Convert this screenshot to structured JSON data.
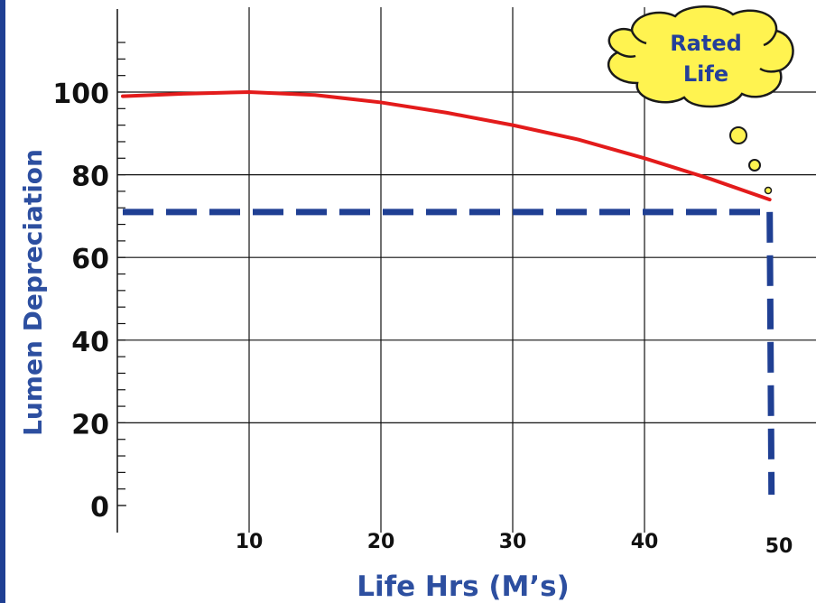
{
  "chart_data": {
    "type": "line",
    "title": "",
    "xlabel": "Life Hrs (M’s)",
    "ylabel": "Lumen Depreciation",
    "xlim": [
      0,
      50
    ],
    "ylim": [
      0,
      100
    ],
    "x_ticks": [
      {
        "value": 10,
        "label": "10"
      },
      {
        "value": 20,
        "label": "20"
      },
      {
        "value": 30,
        "label": "30"
      },
      {
        "value": 40,
        "label": "40"
      },
      {
        "value": 50,
        "label": "50"
      }
    ],
    "y_ticks": [
      {
        "value": 0,
        "label": "0"
      },
      {
        "value": 20,
        "label": "20"
      },
      {
        "value": 40,
        "label": "40"
      },
      {
        "value": 60,
        "label": "60"
      },
      {
        "value": 80,
        "label": "80"
      },
      {
        "value": 100,
        "label": "100"
      }
    ],
    "grid": true,
    "series": [
      {
        "color": "#e31b1b",
        "x": [
          0,
          5,
          10,
          15,
          20,
          25,
          30,
          35,
          40,
          45,
          49.5
        ],
        "y": [
          99,
          99.6,
          100,
          99.3,
          97.5,
          95,
          92,
          88.5,
          84,
          79,
          74
        ]
      }
    ],
    "reference_lines": {
      "horizontal_y": 71,
      "vertical_x": 49.5,
      "color": "#1f3f93",
      "style": "dashed"
    },
    "annotation": {
      "text_lines": [
        "Rated",
        "Life"
      ],
      "fill": "#fff350",
      "text_color": "#243f9a"
    }
  }
}
